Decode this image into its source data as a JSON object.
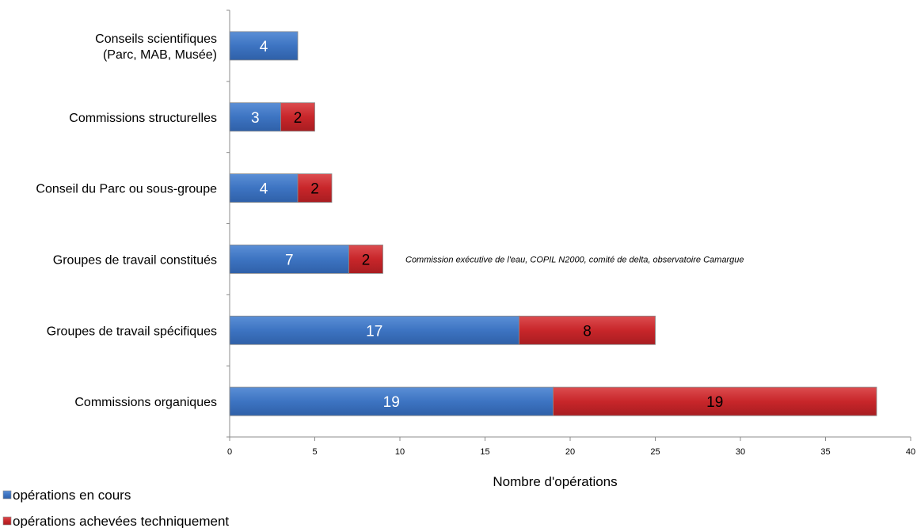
{
  "chart_data": {
    "type": "bar",
    "orientation": "horizontal",
    "stacked": true,
    "categories": [
      [
        "Conseils scientifiques",
        "(Parc, MAB, Musée)"
      ],
      [
        "Commissions structurelles"
      ],
      [
        "Conseil du Parc ou sous-groupe"
      ],
      [
        "Groupes de travail constitués"
      ],
      [
        "Groupes de travail spécifiques"
      ],
      [
        "Commissions organiques"
      ]
    ],
    "series": [
      {
        "name": "opérations en cours",
        "color": "#3d74c2",
        "values": [
          4,
          3,
          4,
          7,
          17,
          19
        ]
      },
      {
        "name": "opérations achevées techniquement",
        "color": "#c8262a",
        "values": [
          null,
          2,
          2,
          2,
          8,
          19
        ]
      }
    ],
    "xlim": [
      0,
      40
    ],
    "xticks": [
      0,
      5,
      10,
      15,
      20,
      25,
      30,
      35,
      40
    ],
    "xlabel": "Nombre d'opérations",
    "ylabel": "",
    "title": "",
    "legend_position": "bottom-left",
    "grid": false,
    "annotations": [
      {
        "text": "Commission exécutive de l'eau, COPIL N2000, comité de delta, observatoire Camargue",
        "category_index": 3
      }
    ]
  }
}
